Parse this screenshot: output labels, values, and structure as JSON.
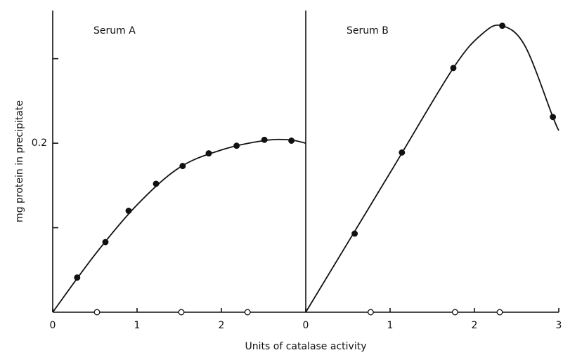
{
  "chart_data": {
    "type": "line",
    "xlabel": "Units of catalase activity",
    "ylabel": "mg protein in precipitate",
    "ylim": [
      0,
      0.357
    ],
    "yticks": [
      0.2
    ],
    "minor_yticks": [
      0.1,
      0.3
    ],
    "color": "#111111",
    "panels": [
      {
        "title": "Serum A",
        "xlim": [
          0,
          3
        ],
        "xticks": [
          0,
          1,
          2
        ],
        "series": [
          {
            "name": null,
            "style": "curve",
            "x": [
              0,
              0.5,
              1,
              1.5,
              2,
              2.5,
              2.8,
              3
            ],
            "values": [
              0,
              0.068,
              0.127,
              0.171,
              0.192,
              0.203,
              0.204,
              0.2
            ]
          },
          {
            "name": null,
            "style": "filled",
            "x": [
              0.29,
              0.625,
              0.9,
              1.225,
              1.54,
              1.85,
              2.18,
              2.51,
              2.83
            ],
            "values": [
              0.041,
              0.083,
              0.12,
              0.152,
              0.173,
              0.188,
              0.197,
              0.204,
              0.203
            ]
          },
          {
            "name": null,
            "style": "open",
            "x": [
              0.525,
              1.525,
              2.31
            ],
            "values": [
              0,
              0,
              0
            ]
          }
        ]
      },
      {
        "title": "Serum B",
        "xlim": [
          0,
          3
        ],
        "xticks": [
          0,
          1,
          2,
          3
        ],
        "series": [
          {
            "name": null,
            "style": "curve",
            "x": [
              0,
              1,
              1.75,
              2.1,
              2.33,
              2.6,
              2.93,
              3
            ],
            "values": [
              0,
              0.165,
              0.289,
              0.33,
              0.339,
              0.315,
              0.231,
              0.215
            ]
          },
          {
            "name": null,
            "style": "filled",
            "x": [
              0.58,
              1.14,
              1.75,
              2.33,
              2.93
            ],
            "values": [
              0.093,
              0.189,
              0.289,
              0.339,
              0.231
            ]
          },
          {
            "name": null,
            "style": "open",
            "x": [
              0.77,
              1.77,
              2.3
            ],
            "values": [
              0,
              0,
              0
            ]
          }
        ]
      }
    ]
  }
}
